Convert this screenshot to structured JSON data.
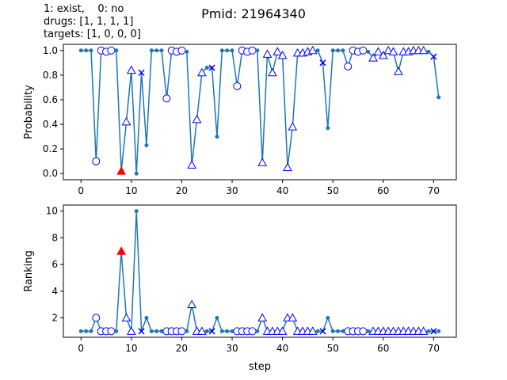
{
  "header": {
    "legend_line": "1: exist,    0: no",
    "drugs_line": "drugs: [1, 1, 1, 1]",
    "targets_line": "targets: [1, 0, 0, 0]"
  },
  "title": "Pmid: 21964340",
  "colors": {
    "line": "#1f77b4",
    "marker_edge": "#0000ff",
    "highlight": "#ff0000"
  },
  "chart_data": [
    {
      "type": "line",
      "ylabel": "Probability",
      "xlabel": "",
      "xlim": [
        -3.5,
        74.5
      ],
      "ylim": [
        -0.05,
        1.05
      ],
      "xticks": [
        0,
        10,
        20,
        30,
        40,
        50,
        60,
        70
      ],
      "yticks": [
        0.0,
        0.2,
        0.4,
        0.6,
        0.8,
        1.0
      ],
      "ytick_labels": [
        "0.0",
        "0.2",
        "0.4",
        "0.6",
        "0.8",
        "1.0"
      ],
      "x": [
        0,
        1,
        2,
        3,
        4,
        5,
        6,
        7,
        8,
        9,
        10,
        11,
        12,
        13,
        14,
        15,
        16,
        17,
        18,
        19,
        20,
        21,
        22,
        23,
        24,
        25,
        26,
        27,
        28,
        29,
        30,
        31,
        32,
        33,
        34,
        35,
        36,
        37,
        38,
        39,
        40,
        41,
        42,
        43,
        44,
        45,
        46,
        47,
        48,
        49,
        50,
        51,
        52,
        53,
        54,
        55,
        56,
        57,
        58,
        59,
        60,
        61,
        62,
        63,
        64,
        65,
        66,
        67,
        68,
        69,
        70,
        71
      ],
      "y": [
        1.0,
        1.0,
        1.0,
        0.1,
        1.0,
        0.99,
        1.0,
        1.0,
        0.02,
        0.42,
        0.84,
        0.0,
        0.82,
        0.23,
        1.0,
        1.0,
        1.0,
        0.61,
        1.0,
        0.99,
        1.0,
        0.99,
        0.07,
        0.44,
        0.82,
        0.86,
        0.86,
        0.3,
        1.0,
        1.0,
        1.0,
        0.71,
        1.0,
        0.99,
        1.0,
        1.0,
        0.09,
        0.97,
        0.82,
        0.99,
        0.96,
        0.05,
        0.38,
        0.98,
        0.98,
        0.99,
        1.0,
        1.0,
        0.9,
        0.37,
        1.0,
        1.0,
        1.0,
        0.87,
        1.0,
        0.99,
        1.0,
        0.99,
        0.94,
        0.99,
        0.96,
        1.0,
        0.99,
        0.83,
        0.99,
        0.99,
        1.0,
        1.0,
        1.0,
        0.99,
        0.95,
        0.62
      ],
      "markers": [
        "dot",
        "dot",
        "dot",
        "circle",
        "circle",
        "circle",
        "circle",
        "dot",
        "red-triangle",
        "triangle",
        "triangle",
        "dot",
        "x",
        "dot",
        "dot",
        "dot",
        "dot",
        "circle",
        "circle",
        "circle",
        "circle",
        "dot",
        "triangle",
        "triangle",
        "triangle",
        "dot",
        "x",
        "dot",
        "dot",
        "dot",
        "dot",
        "circle",
        "circle",
        "circle",
        "circle",
        "dot",
        "triangle",
        "triangle",
        "triangle",
        "triangle",
        "triangle",
        "triangle",
        "triangle",
        "triangle",
        "triangle",
        "triangle",
        "triangle",
        "dot",
        "x",
        "dot",
        "dot",
        "dot",
        "dot",
        "circle",
        "circle",
        "circle",
        "circle",
        "dot",
        "triangle",
        "triangle",
        "triangle",
        "triangle",
        "triangle",
        "triangle",
        "triangle",
        "triangle",
        "triangle",
        "triangle",
        "triangle",
        "dot",
        "x",
        "dot"
      ]
    },
    {
      "type": "line",
      "ylabel": "Ranking",
      "xlabel": "step",
      "xlim": [
        -3.5,
        74.5
      ],
      "ylim": [
        0.55,
        10.45
      ],
      "xticks": [
        0,
        10,
        20,
        30,
        40,
        50,
        60,
        70
      ],
      "yticks": [
        2,
        4,
        6,
        8,
        10
      ],
      "ytick_labels": [
        "2",
        "4",
        "6",
        "8",
        "10"
      ],
      "x": [
        0,
        1,
        2,
        3,
        4,
        5,
        6,
        7,
        8,
        9,
        10,
        11,
        12,
        13,
        14,
        15,
        16,
        17,
        18,
        19,
        20,
        21,
        22,
        23,
        24,
        25,
        26,
        27,
        28,
        29,
        30,
        31,
        32,
        33,
        34,
        35,
        36,
        37,
        38,
        39,
        40,
        41,
        42,
        43,
        44,
        45,
        46,
        47,
        48,
        49,
        50,
        51,
        52,
        53,
        54,
        55,
        56,
        57,
        58,
        59,
        60,
        61,
        62,
        63,
        64,
        65,
        66,
        67,
        68,
        69,
        70,
        71
      ],
      "y": [
        1,
        1,
        1,
        2,
        1,
        1,
        1,
        1,
        7,
        2,
        1,
        10,
        1,
        2,
        1,
        1,
        1,
        1,
        1,
        1,
        1,
        1,
        3,
        1,
        1,
        1,
        1,
        2,
        1,
        1,
        1,
        1,
        1,
        1,
        1,
        1,
        2,
        1,
        1,
        1,
        1,
        2,
        2,
        1,
        1,
        1,
        1,
        1,
        1,
        2,
        1,
        1,
        1,
        1,
        1,
        1,
        1,
        1,
        1,
        1,
        1,
        1,
        1,
        1,
        1,
        1,
        1,
        1,
        1,
        1,
        1,
        1
      ],
      "markers": [
        "dot",
        "dot",
        "dot",
        "circle",
        "circle",
        "circle",
        "circle",
        "dot",
        "red-triangle",
        "triangle",
        "triangle",
        "dot",
        "x",
        "dot",
        "dot",
        "dot",
        "dot",
        "circle",
        "circle",
        "circle",
        "circle",
        "dot",
        "triangle",
        "triangle",
        "triangle",
        "dot",
        "x",
        "dot",
        "dot",
        "dot",
        "dot",
        "circle",
        "circle",
        "circle",
        "circle",
        "dot",
        "triangle",
        "triangle",
        "triangle",
        "triangle",
        "triangle",
        "triangle",
        "triangle",
        "triangle",
        "triangle",
        "triangle",
        "triangle",
        "dot",
        "x",
        "dot",
        "dot",
        "dot",
        "dot",
        "circle",
        "circle",
        "circle",
        "circle",
        "dot",
        "triangle",
        "triangle",
        "triangle",
        "triangle",
        "triangle",
        "triangle",
        "triangle",
        "triangle",
        "triangle",
        "triangle",
        "triangle",
        "dot",
        "x",
        "dot"
      ]
    }
  ]
}
